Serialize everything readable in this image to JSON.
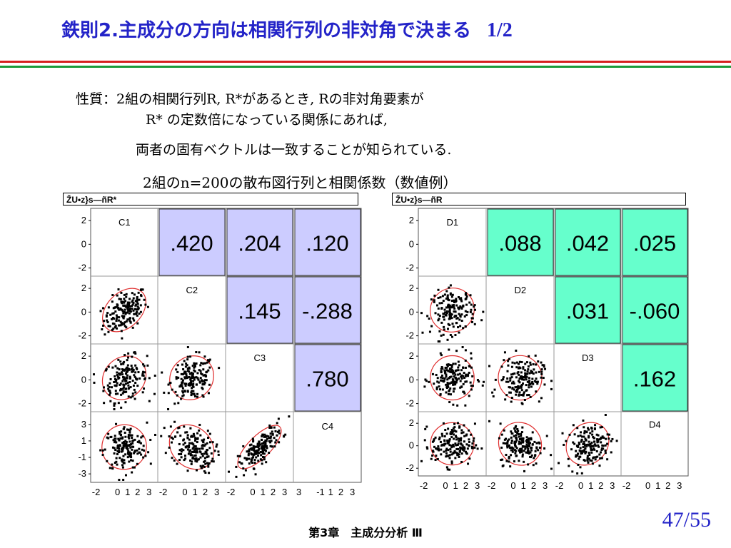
{
  "slide": {
    "title": "鉄則2.主成分の方向は相関行列の非対角で決まる",
    "title_part": "1/2",
    "property_line1": "性質：2組の相関行列R, R*があるとき, Rの非対角要素が",
    "property_line2": "R* の定数倍になっている関係にあれば,",
    "property_line3": "両者の固有ベクトルは一致することが知られている.",
    "caption": "2組のn=200の散布図行列と相関係数（数値例）",
    "footer": "第3章　主成分分析 Ⅲ",
    "page": "47/55"
  },
  "colors": {
    "title": "#2323c8",
    "rule_red": "#d42020",
    "rule_green": "#1a9a3a",
    "left_box": "#ccccff",
    "right_box": "#66ffcc",
    "ellipse": "#e03030"
  },
  "matrices": [
    {
      "window_title": "ŽU•z}s—ñR*",
      "variables": [
        "C1",
        "C2",
        "C3",
        "C4"
      ],
      "correlations": [
        [
          null,
          ".420",
          ".204",
          ".120"
        ],
        [
          null,
          null,
          ".145",
          "-.288"
        ],
        [
          null,
          null,
          null,
          ".780"
        ]
      ],
      "y_ticks": [
        [
          "2",
          "0",
          "-2"
        ],
        [
          "2",
          "0",
          "-2"
        ],
        [
          "2",
          "0",
          "-2"
        ],
        [
          "3",
          "1",
          "-1",
          "-3"
        ]
      ],
      "x_ticks": [
        [
          "-2",
          "0",
          "1",
          "2",
          "3"
        ],
        [
          "-2",
          "0",
          "1",
          "2",
          "3"
        ],
        [
          "-2",
          "0",
          "1",
          "2",
          "3"
        ],
        [
          "3",
          "-1",
          "1",
          "2",
          "3"
        ]
      ]
    },
    {
      "window_title": "ŽU•z}s—ñR",
      "variables": [
        "D1",
        "D2",
        "D3",
        "D4"
      ],
      "correlations": [
        [
          null,
          ".088",
          ".042",
          ".025"
        ],
        [
          null,
          null,
          ".031",
          "-.060"
        ],
        [
          null,
          null,
          null,
          ".162"
        ]
      ],
      "y_ticks": [
        [
          "2",
          "0",
          "-2"
        ],
        [
          "2",
          "0",
          "-2"
        ],
        [
          "2",
          "0",
          "-2"
        ],
        [
          "2",
          "0",
          "-2"
        ]
      ],
      "x_ticks": [
        [
          "-2",
          "0",
          "1",
          "2",
          "3"
        ],
        [
          "-2",
          "0",
          "1",
          "2",
          "3"
        ],
        [
          "-2",
          "0",
          "1",
          "2",
          "3"
        ],
        [
          "-2",
          "0",
          "1",
          "2",
          "3"
        ]
      ]
    }
  ]
}
